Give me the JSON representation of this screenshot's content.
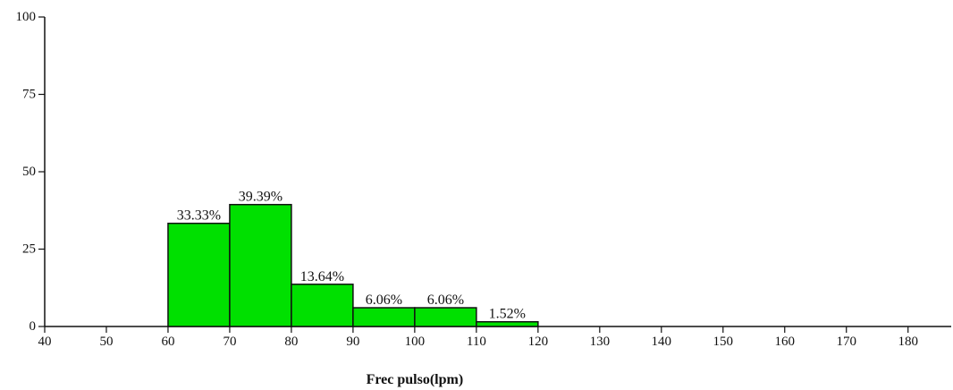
{
  "chart_data": {
    "type": "bar",
    "title": "",
    "xlabel": "Frec pulso(lpm)",
    "ylabel": "",
    "xlim": [
      40,
      187
    ],
    "ylim": [
      0,
      100
    ],
    "x_ticks": [
      "40",
      "50",
      "60",
      "70",
      "80",
      "90",
      "100",
      "110",
      "120",
      "130",
      "140",
      "150",
      "160",
      "170",
      "180"
    ],
    "y_ticks": [
      "0",
      "25",
      "50",
      "75",
      "100"
    ],
    "bins": [
      {
        "start": 60,
        "end": 70,
        "value": 33.33,
        "label": "33.33%"
      },
      {
        "start": 70,
        "end": 80,
        "value": 39.39,
        "label": "39.39%"
      },
      {
        "start": 80,
        "end": 90,
        "value": 13.64,
        "label": "13.64%"
      },
      {
        "start": 90,
        "end": 100,
        "value": 6.06,
        "label": "6.06%"
      },
      {
        "start": 100,
        "end": 110,
        "value": 6.06,
        "label": "6.06%"
      },
      {
        "start": 110,
        "end": 120,
        "value": 1.52,
        "label": "1.52%"
      }
    ],
    "grid": false,
    "legend": "none",
    "colors": {
      "bar_fill": "#00e000",
      "bar_stroke": "#111111",
      "axis": "#111111",
      "text": "#111111"
    }
  }
}
